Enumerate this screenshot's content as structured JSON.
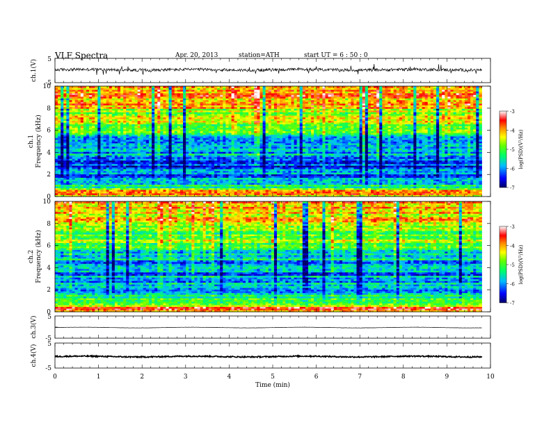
{
  "header": {
    "title": "VLF Spectra",
    "date": "Apr. 20, 2013",
    "station": "station=ATH",
    "start": "start UT = 6 : 50 : 0"
  },
  "chart_data": [
    {
      "type": "line",
      "panel": "ch1-waveform",
      "ylabel": "ch.1(V)",
      "yticks": [
        "5",
        "-5"
      ],
      "ylim": [
        -5,
        5
      ],
      "x_unit": "min",
      "xlim": [
        0,
        10
      ],
      "data_end_min": 9.8,
      "mean_level": 0.3,
      "noise_amplitude": 0.6,
      "spike_amplitude": 2.0,
      "color": "#000000"
    },
    {
      "type": "heatmap",
      "panel": "ch1-spectrogram",
      "ylabel_top": "ch.1",
      "ylabel": "Frequency (kHz)",
      "yticks": [
        "0",
        "2",
        "4",
        "6",
        "8",
        "10"
      ],
      "ylim": [
        0,
        10
      ],
      "xlim": [
        0,
        10
      ],
      "data_end_min": 9.8,
      "colorbar": {
        "label": "log(PSD)(V²/Hz)",
        "ticks": [
          "-3",
          "-4",
          "-5",
          "-6",
          "-7"
        ],
        "range": [
          -7,
          -3
        ]
      },
      "band_profile_kHz_log": [
        [
          0.0,
          -4.2
        ],
        [
          0.4,
          -3.6
        ],
        [
          0.7,
          -4.8
        ],
        [
          1.2,
          -5.6
        ],
        [
          2.0,
          -6.1
        ],
        [
          2.6,
          -6.4
        ],
        [
          3.4,
          -6.0
        ],
        [
          4.2,
          -5.8
        ],
        [
          5.2,
          -5.6
        ],
        [
          6.4,
          -5.0
        ],
        [
          7.4,
          -4.5
        ],
        [
          8.6,
          -4.1
        ],
        [
          10.0,
          -3.9
        ]
      ]
    },
    {
      "type": "heatmap",
      "panel": "ch2-spectrogram",
      "ylabel_top": "ch.2",
      "ylabel": "Frequency (kHz)",
      "yticks": [
        "0",
        "2",
        "4",
        "6",
        "8",
        "10"
      ],
      "ylim": [
        0,
        10
      ],
      "xlim": [
        0,
        10
      ],
      "data_end_min": 9.8,
      "colorbar": {
        "label": "log(PSD)(V²/Hz)",
        "ticks": [
          "-3",
          "-4",
          "-5",
          "-6",
          "-7"
        ],
        "range": [
          -7,
          -3
        ]
      },
      "band_profile_kHz_log": [
        [
          0.0,
          -4.3
        ],
        [
          0.4,
          -3.7
        ],
        [
          0.7,
          -4.6
        ],
        [
          1.2,
          -5.4
        ],
        [
          2.0,
          -5.6
        ],
        [
          2.6,
          -5.8
        ],
        [
          3.4,
          -5.9
        ],
        [
          4.2,
          -6.0
        ],
        [
          5.2,
          -5.6
        ],
        [
          6.4,
          -5.0
        ],
        [
          7.4,
          -4.6
        ],
        [
          8.6,
          -4.2
        ],
        [
          10.0,
          -4.0
        ]
      ]
    },
    {
      "type": "line",
      "panel": "ch3-waveform",
      "ylabel": "ch.3(V)",
      "yticks": [
        "5",
        "-5"
      ],
      "ylim": [
        -5,
        5
      ],
      "xlim": [
        0,
        10
      ],
      "data_end_min": 9.8,
      "mean_level": -0.2,
      "noise_amplitude": 0.05,
      "color": "#000000"
    },
    {
      "type": "line",
      "panel": "ch4-waveform",
      "ylabel": "ch.4(V)",
      "yticks": [
        "5",
        "-5"
      ],
      "ylim": [
        -5,
        5
      ],
      "xlim": [
        0,
        10
      ],
      "data_end_min": 9.8,
      "mean_level": -0.4,
      "noise_amplitude": 0.25,
      "color": "#000000",
      "xlabel": "Time (min)",
      "xticks": [
        "0",
        "1",
        "2",
        "3",
        "4",
        "5",
        "6",
        "7",
        "8",
        "9",
        "10"
      ]
    }
  ]
}
